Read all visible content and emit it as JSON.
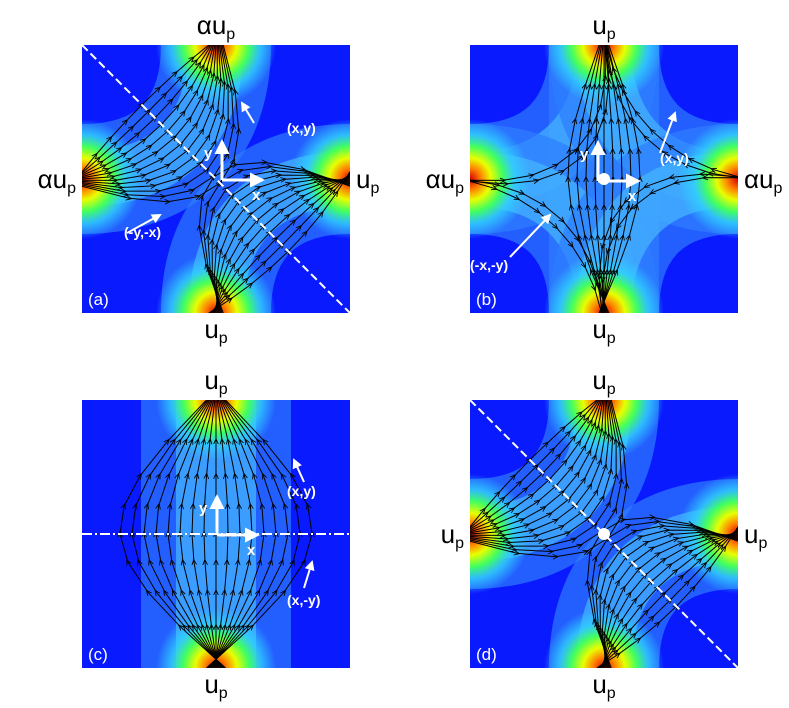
{
  "panels": [
    {
      "label": "(a)",
      "top": {
        "text": "αu",
        "sub": "p"
      },
      "left": {
        "text": "αu",
        "sub": "p"
      },
      "right": {
        "text": "u",
        "sub": "p"
      },
      "bottom": {
        "text": "u",
        "sub": "p"
      },
      "annotations": [
        "(x,y)",
        "(-y,-x)"
      ],
      "axis_labels": [
        "x",
        "y"
      ]
    },
    {
      "label": "(b)",
      "top": {
        "text": "u",
        "sub": "p"
      },
      "left": {
        "text": "αu",
        "sub": "p"
      },
      "right": {
        "text": "αu",
        "sub": "p"
      },
      "bottom": {
        "text": "u",
        "sub": "p"
      },
      "annotations": [
        "(x,y)",
        "(-x,-y)"
      ],
      "axis_labels": [
        "x",
        "y"
      ]
    },
    {
      "label": "(c)",
      "top": {
        "text": "u",
        "sub": "p"
      },
      "bottom": {
        "text": "u",
        "sub": "p"
      },
      "annotations": [
        "(x,y)",
        "(x,-y)"
      ],
      "axis_labels": [
        "x",
        "y"
      ]
    },
    {
      "label": "(d)",
      "top": {
        "text": "u",
        "sub": "p"
      },
      "left": {
        "text": "u",
        "sub": "p"
      },
      "right": {
        "text": "u",
        "sub": "p"
      },
      "bottom": {
        "text": "u",
        "sub": "p"
      },
      "annotations": [],
      "axis_labels": []
    }
  ]
}
